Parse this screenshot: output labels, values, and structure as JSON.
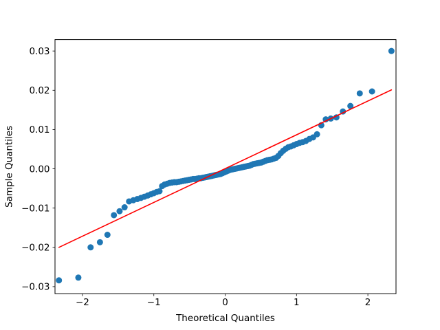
{
  "figure": {
    "background": "#ffffff",
    "frame_color": "#000000",
    "text_color": "#000000"
  },
  "chart_data": {
    "type": "scatter",
    "chart_kind": "qq-plot",
    "title": "",
    "xlabel": "Theoretical Quantiles",
    "ylabel": "Sample Quantiles",
    "xlim": [
      -2.385,
      2.394
    ],
    "ylim": [
      -0.0318,
      0.0329
    ],
    "x_ticks": [
      -2,
      -1,
      0,
      1,
      2
    ],
    "y_ticks": [
      -0.03,
      -0.02,
      -0.01,
      0,
      0.01,
      0.02,
      0.03
    ],
    "grid": false,
    "legend": false,
    "marker_color": "#1f77b4",
    "marker_radius": 4.5,
    "ref_line": {
      "color": "#ff0000",
      "width": 1.6,
      "x": [
        -2.33,
        2.33
      ],
      "y": [
        -0.02,
        0.0201
      ]
    },
    "series_name": "sample",
    "points": [
      [
        -2.33,
        -0.0284
      ],
      [
        -2.058,
        -0.0277
      ],
      [
        -1.886,
        -0.02
      ],
      [
        -1.755,
        -0.0187
      ],
      [
        -1.65,
        -0.0168
      ],
      [
        -1.559,
        -0.0118
      ],
      [
        -1.48,
        -0.0108
      ],
      [
        -1.41,
        -0.0098
      ],
      [
        -1.347,
        -0.0083
      ],
      [
        -1.287,
        -0.008
      ],
      [
        -1.232,
        -0.0077
      ],
      [
        -1.18,
        -0.0074
      ],
      [
        -1.132,
        -0.0071
      ],
      [
        -1.086,
        -0.0068
      ],
      [
        -1.043,
        -0.0065
      ],
      [
        -1.0,
        -0.0062
      ],
      [
        -0.96,
        -0.0059
      ],
      [
        -0.921,
        -0.0057
      ],
      [
        -0.884,
        -0.0044
      ],
      [
        -0.849,
        -0.004
      ],
      [
        -0.813,
        -0.0038
      ],
      [
        -0.779,
        -0.0036
      ],
      [
        -0.746,
        -0.0035
      ],
      [
        -0.714,
        -0.0034
      ],
      [
        -0.682,
        -0.0034
      ],
      [
        -0.651,
        -0.0033
      ],
      [
        -0.621,
        -0.0032
      ],
      [
        -0.591,
        -0.0031
      ],
      [
        -0.562,
        -0.003
      ],
      [
        -0.533,
        -0.0029
      ],
      [
        -0.505,
        -0.0028
      ],
      [
        -0.477,
        -0.0027
      ],
      [
        -0.449,
        -0.0026
      ],
      [
        -0.422,
        -0.0026
      ],
      [
        -0.395,
        -0.0025
      ],
      [
        -0.368,
        -0.0024
      ],
      [
        -0.342,
        -0.0024
      ],
      [
        -0.316,
        -0.0023
      ],
      [
        -0.289,
        -0.0022
      ],
      [
        -0.264,
        -0.0021
      ],
      [
        -0.238,
        -0.002
      ],
      [
        -0.213,
        -0.0019
      ],
      [
        -0.187,
        -0.0018
      ],
      [
        -0.162,
        -0.0017
      ],
      [
        -0.137,
        -0.0016
      ],
      [
        -0.112,
        -0.0015
      ],
      [
        -0.087,
        -0.0014
      ],
      [
        -0.062,
        -0.0013
      ],
      [
        -0.037,
        -0.0011
      ],
      [
        -0.012,
        -0.0009
      ],
      [
        0.012,
        -0.0007
      ],
      [
        0.037,
        -0.0005
      ],
      [
        0.062,
        -0.0003
      ],
      [
        0.087,
        -0.0002
      ],
      [
        0.112,
        -0.0001
      ],
      [
        0.137,
        0.0
      ],
      [
        0.162,
        0.0001
      ],
      [
        0.187,
        0.0002
      ],
      [
        0.213,
        0.0003
      ],
      [
        0.238,
        0.0004
      ],
      [
        0.264,
        0.0005
      ],
      [
        0.289,
        0.0006
      ],
      [
        0.316,
        0.0007
      ],
      [
        0.342,
        0.0008
      ],
      [
        0.368,
        0.001
      ],
      [
        0.395,
        0.0012
      ],
      [
        0.422,
        0.0013
      ],
      [
        0.449,
        0.0014
      ],
      [
        0.477,
        0.0015
      ],
      [
        0.505,
        0.0016
      ],
      [
        0.533,
        0.0018
      ],
      [
        0.562,
        0.002
      ],
      [
        0.591,
        0.0022
      ],
      [
        0.621,
        0.0023
      ],
      [
        0.651,
        0.0024
      ],
      [
        0.682,
        0.0026
      ],
      [
        0.714,
        0.0028
      ],
      [
        0.746,
        0.0033
      ],
      [
        0.779,
        0.004
      ],
      [
        0.813,
        0.0046
      ],
      [
        0.849,
        0.0051
      ],
      [
        0.884,
        0.0055
      ],
      [
        0.921,
        0.0057
      ],
      [
        0.96,
        0.006
      ],
      [
        1.0,
        0.0063
      ],
      [
        1.043,
        0.0066
      ],
      [
        1.086,
        0.0068
      ],
      [
        1.132,
        0.0071
      ],
      [
        1.18,
        0.0076
      ],
      [
        1.232,
        0.008
      ],
      [
        1.287,
        0.0088
      ],
      [
        1.347,
        0.0111
      ],
      [
        1.41,
        0.0126
      ],
      [
        1.48,
        0.0128
      ],
      [
        1.559,
        0.0131
      ],
      [
        1.65,
        0.0146
      ],
      [
        1.755,
        0.016
      ],
      [
        1.886,
        0.0192
      ],
      [
        2.058,
        0.0197
      ],
      [
        2.33,
        0.03
      ]
    ]
  }
}
